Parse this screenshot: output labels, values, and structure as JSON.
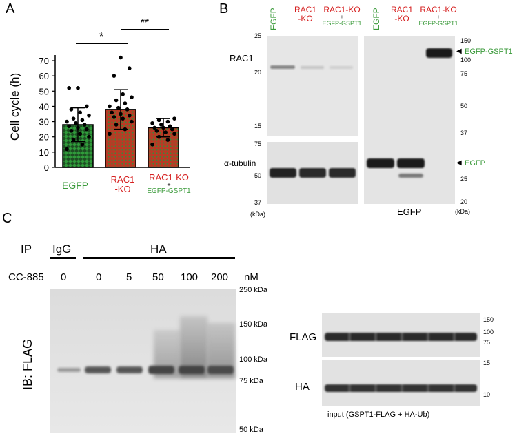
{
  "panel_a": {
    "letter": "A",
    "ylabel": "Cell cycle (h)",
    "yticks": [
      "0",
      "10",
      "20",
      "30",
      "40",
      "50",
      "60",
      "70"
    ],
    "sig_left": "*",
    "sig_right": "**",
    "groups": [
      {
        "line1": "EGFP",
        "line2": "",
        "line3": "",
        "line4": ""
      },
      {
        "line1": "RAC1",
        "line2": "-KO",
        "line3": "",
        "line4": ""
      },
      {
        "line1": "RAC1-KO",
        "line2": "+",
        "line3": "EGFP-GSPT1",
        "line4": ""
      }
    ]
  },
  "chart_data": {
    "type": "bar",
    "categories": [
      "EGFP",
      "RAC1-KO",
      "RAC1-KO + EGFP-GSPT1"
    ],
    "values": [
      28,
      38,
      26
    ],
    "errors": [
      11,
      13,
      6
    ],
    "ylabel": "Cell cycle (h)",
    "ylim": [
      0,
      75
    ],
    "points": [
      [
        12,
        15,
        18,
        20,
        22,
        24,
        25,
        26,
        27,
        28,
        29,
        30,
        31,
        32,
        34,
        36,
        38,
        40,
        52,
        52
      ],
      [
        22,
        25,
        28,
        30,
        32,
        33,
        34,
        35,
        36,
        38,
        39,
        40,
        42,
        44,
        46,
        48,
        60,
        65,
        72
      ],
      [
        15,
        18,
        20,
        22,
        23,
        24,
        25,
        26,
        26,
        27,
        28,
        29,
        30,
        31,
        32
      ]
    ]
  },
  "panel_b": {
    "letter": "B",
    "lanes": [
      {
        "l1": "EGFP",
        "l2": "",
        "l3": "",
        "l4": ""
      },
      {
        "l1": "RAC1",
        "l2": "-KO",
        "l3": "",
        "l4": ""
      },
      {
        "l1": "RAC1-KO",
        "l2": "+",
        "l3": "EGFP-GSPT1",
        "l4": ""
      },
      {
        "l1": "EGFP",
        "l2": "",
        "l3": "",
        "l4": ""
      },
      {
        "l1": "RAC1",
        "l2": "-KO",
        "l3": "",
        "l4": ""
      },
      {
        "l1": "RAC1-KO",
        "l2": "+",
        "l3": "EGFP-GSPT1",
        "l4": ""
      }
    ],
    "rac1_label": "RAC1",
    "tubulin_label": "α-tubulin",
    "left_mw_top": [
      "25",
      "20",
      "15"
    ],
    "left_mw_bottom": [
      "75",
      "50",
      "37"
    ],
    "kda": "(kDa)",
    "right_mw": [
      "150",
      "100",
      "75",
      "50",
      "37",
      "25",
      "20"
    ],
    "egfp_gspt1_label": "EGFP-GSPT1",
    "egfp_label": "EGFP",
    "egfp_blot_title": "EGFP"
  },
  "panel_c": {
    "letter": "C",
    "ip": "IP",
    "igg": "IgG",
    "ha": "HA",
    "drug": "CC-885",
    "doses": [
      "0",
      "0",
      "5",
      "50",
      "100",
      "200"
    ],
    "unit": "nM",
    "ib": "IB: FLAG",
    "mw_main": [
      "250 kDa",
      "150 kDa",
      "100 kDa",
      "75 kDa",
      "50 kDa"
    ],
    "flag": "FLAG",
    "ha_row": "HA",
    "mw_flag": [
      "150",
      "100",
      "75"
    ],
    "mw_ha": [
      "15",
      "10"
    ],
    "input_caption": "input (GSPT1-FLAG + HA-Ub)"
  }
}
